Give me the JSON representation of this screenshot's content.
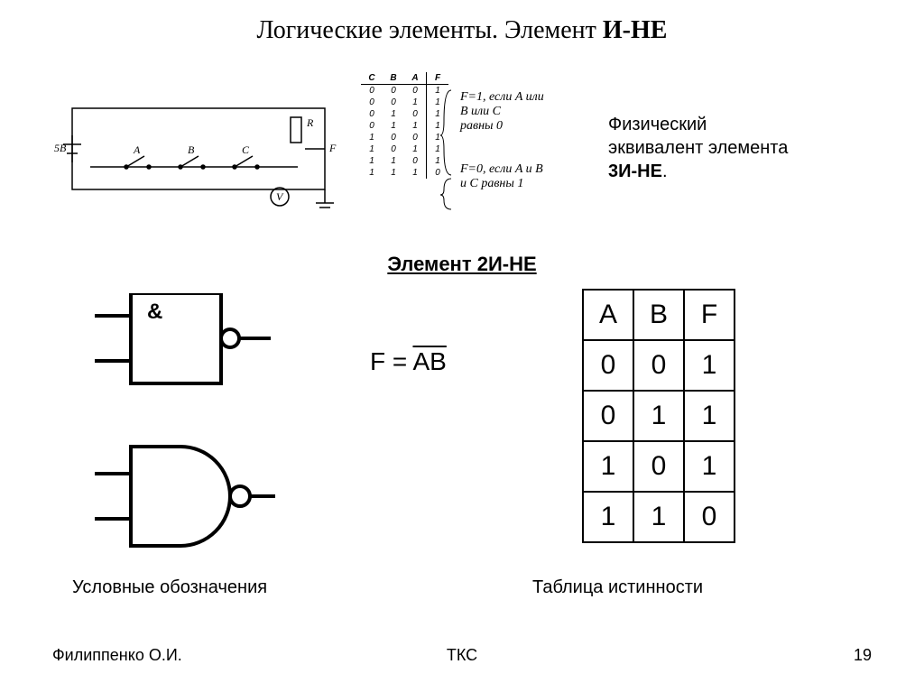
{
  "title_plain": "Логические элементы. Элемент  ",
  "title_bold": "И-НЕ",
  "physical_equivalent": {
    "line1": "Физический",
    "line2": "эквивалент элемента",
    "line3_bold": "3И-НЕ",
    "line3_tail": "."
  },
  "small_truth": {
    "headers": [
      "C",
      "B",
      "A",
      "F"
    ],
    "rows": [
      [
        "0",
        "0",
        "0",
        "1"
      ],
      [
        "0",
        "0",
        "1",
        "1"
      ],
      [
        "0",
        "1",
        "0",
        "1"
      ],
      [
        "0",
        "1",
        "1",
        "1"
      ],
      [
        "1",
        "0",
        "0",
        "1"
      ],
      [
        "1",
        "0",
        "1",
        "1"
      ],
      [
        "1",
        "1",
        "0",
        "1"
      ],
      [
        "1",
        "1",
        "1",
        "0"
      ]
    ]
  },
  "brace_notes": {
    "top1": "F=1, если A или",
    "top2": "B или C",
    "top3": "равны 0",
    "bot1": "F=0, если A и B",
    "bot2": "и C равны 1"
  },
  "circuit_labels": {
    "v_src": "5В",
    "sw_a": "A",
    "sw_b": "B",
    "sw_c": "C",
    "r": "R",
    "f": "F",
    "meter": "V"
  },
  "section_heading": "Элемент 2И-НЕ",
  "gate_amp": "&",
  "formula_lhs": "F = ",
  "formula_rhs": "AB",
  "truth_big": {
    "headers": [
      "A",
      "B",
      "F"
    ],
    "rows": [
      [
        "0",
        "0",
        "1"
      ],
      [
        "0",
        "1",
        "1"
      ],
      [
        "1",
        "0",
        "1"
      ],
      [
        "1",
        "1",
        "0"
      ]
    ]
  },
  "captions": {
    "symbols": "Условные обозначения",
    "table": "Таблица истинности"
  },
  "footer": {
    "author": "Филиппенко О.И.",
    "course": "ТКС",
    "page": "19"
  },
  "colors": {
    "text": "#000000",
    "bg": "#ffffff",
    "stroke": "#000000"
  }
}
